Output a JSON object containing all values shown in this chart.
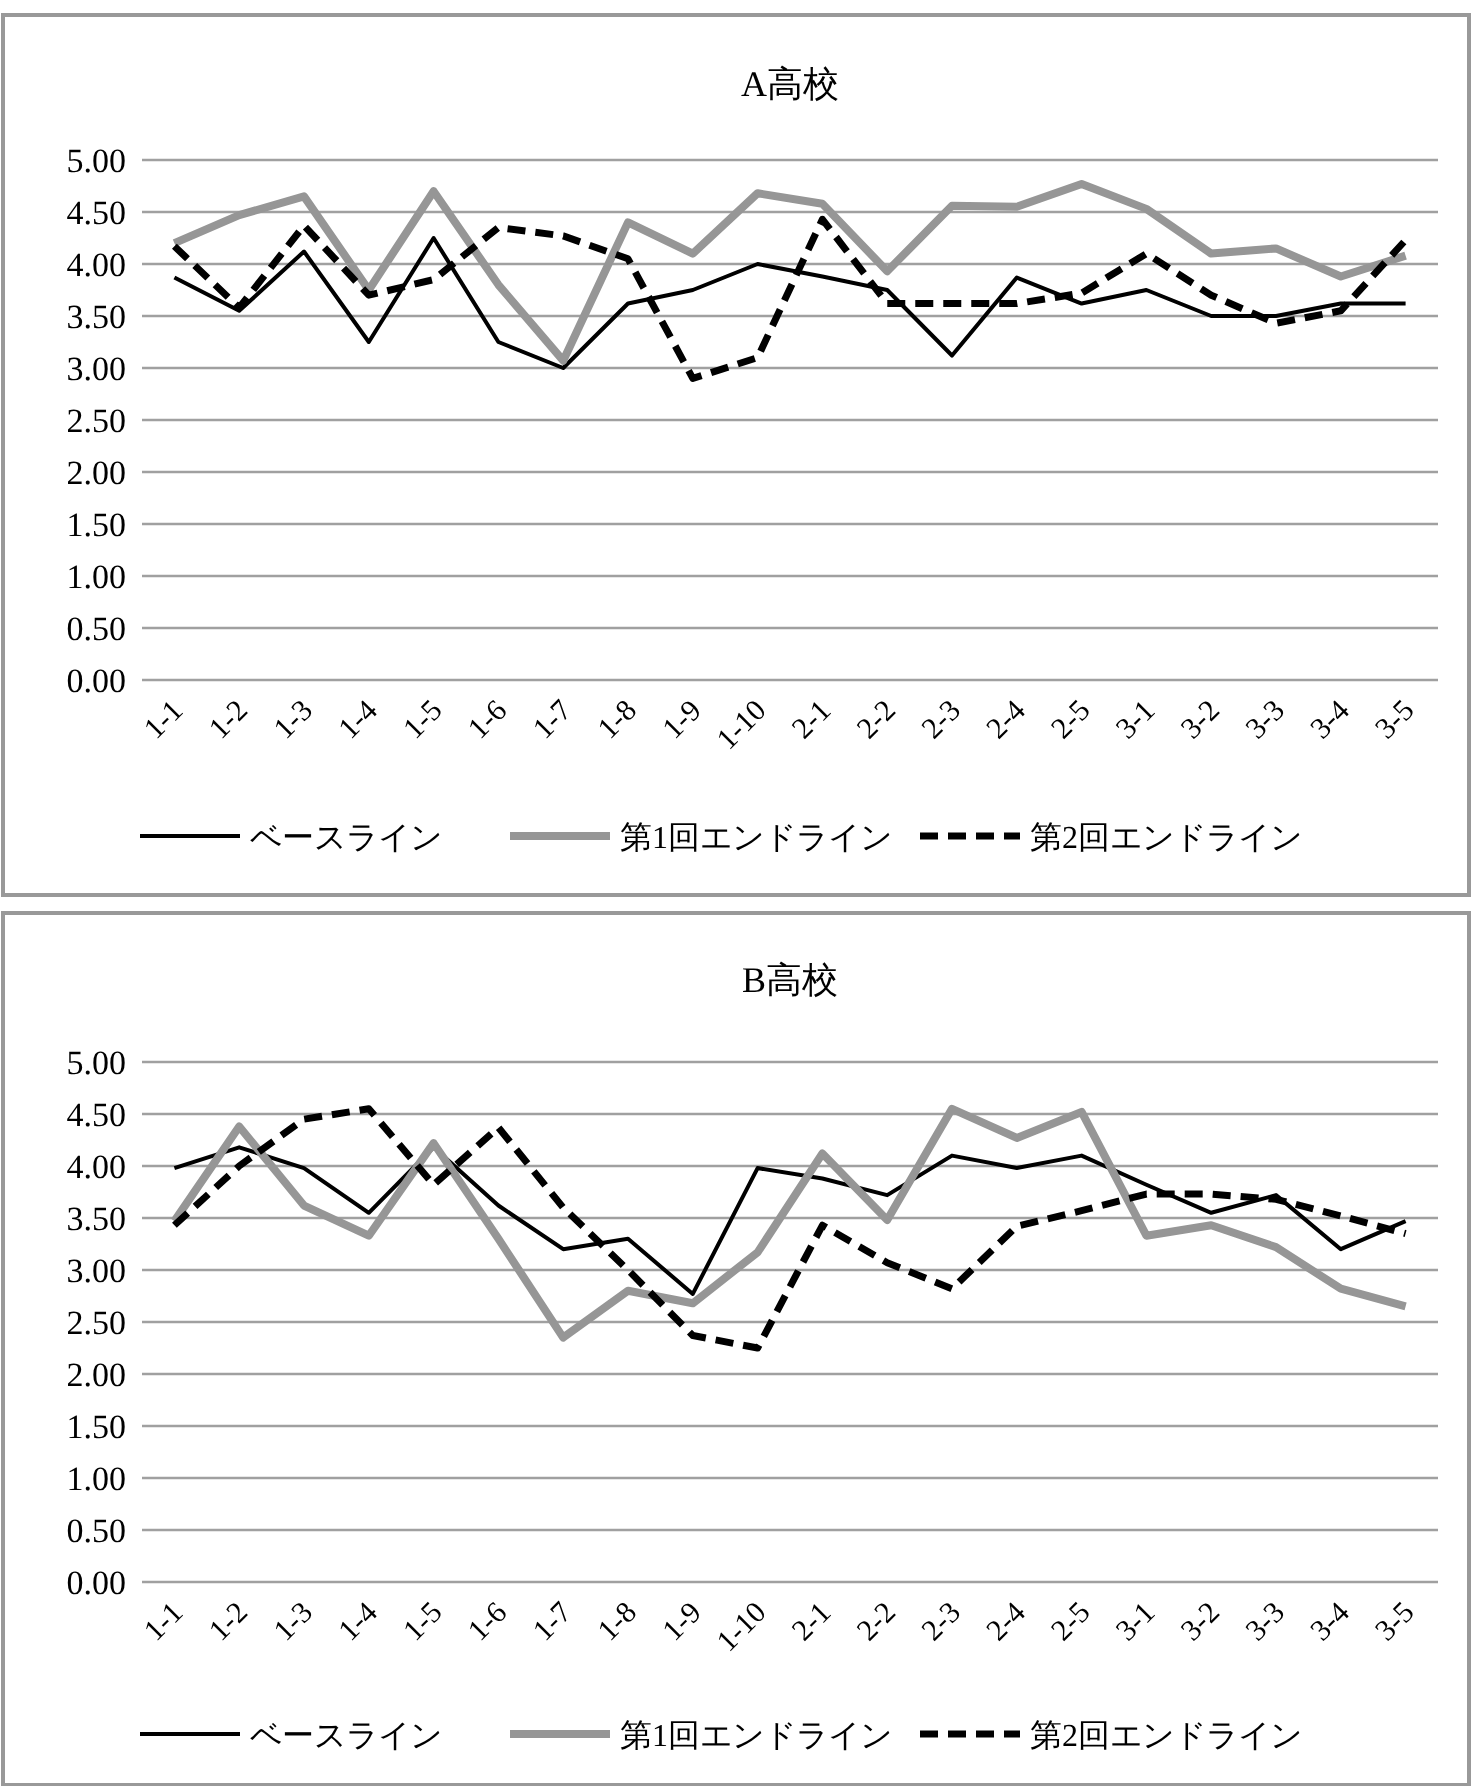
{
  "chart_data": [
    {
      "type": "line",
      "title": "A高校",
      "categories": [
        "1-1",
        "1-2",
        "1-3",
        "1-4",
        "1-5",
        "1-6",
        "1-7",
        "1-8",
        "1-9",
        "1-10",
        "2-1",
        "2-2",
        "2-3",
        "2-4",
        "2-5",
        "3-1",
        "3-2",
        "3-3",
        "3-4",
        "3-5"
      ],
      "series": [
        {
          "name": "ベースライン",
          "color": "#000000",
          "line_style": "solid",
          "values": [
            3.87,
            3.55,
            4.12,
            3.25,
            4.25,
            3.25,
            3.0,
            3.62,
            3.75,
            4.0,
            3.88,
            3.75,
            3.12,
            3.87,
            3.62,
            3.75,
            3.5,
            3.5,
            3.62,
            3.62
          ]
        },
        {
          "name": "第1回エンドライン",
          "color": "#969696",
          "line_style": "solid",
          "values": [
            4.2,
            4.47,
            4.65,
            3.75,
            4.7,
            3.8,
            3.07,
            4.4,
            4.1,
            4.68,
            4.58,
            3.93,
            4.56,
            4.55,
            4.77,
            4.53,
            4.1,
            4.15,
            3.88,
            4.08
          ]
        },
        {
          "name": "第2回エンドライン",
          "color": "#000000",
          "line_style": "dashed",
          "values": [
            4.17,
            3.58,
            4.37,
            3.7,
            3.85,
            4.35,
            4.27,
            4.05,
            2.9,
            3.1,
            4.43,
            3.62,
            3.62,
            3.62,
            3.72,
            4.1,
            3.7,
            3.43,
            3.55,
            4.23
          ]
        }
      ],
      "ylim": [
        0,
        5
      ],
      "yticks": [
        {
          "value": 0,
          "label": "0.00"
        },
        {
          "value": 0.5,
          "label": "0.50"
        },
        {
          "value": 1,
          "label": "1.00"
        },
        {
          "value": 1.5,
          "label": "1.50"
        },
        {
          "value": 2,
          "label": "2.00"
        },
        {
          "value": 2.5,
          "label": "2.50"
        },
        {
          "value": 3,
          "label": "3.00"
        },
        {
          "value": 3.5,
          "label": "3.50"
        },
        {
          "value": 4,
          "label": "4.00"
        },
        {
          "value": 4.5,
          "label": "4.50"
        },
        {
          "value": 5,
          "label": "5.00"
        }
      ],
      "grid": "y",
      "legend": "bottom"
    },
    {
      "type": "line",
      "title": "B高校",
      "categories": [
        "1-1",
        "1-2",
        "1-3",
        "1-4",
        "1-5",
        "1-6",
        "1-7",
        "1-8",
        "1-9",
        "1-10",
        "2-1",
        "2-2",
        "2-3",
        "2-4",
        "2-5",
        "3-1",
        "3-2",
        "3-3",
        "3-4",
        "3-5"
      ],
      "series": [
        {
          "name": "ベースライン",
          "color": "#000000",
          "line_style": "solid",
          "values": [
            3.98,
            4.18,
            3.98,
            3.55,
            4.18,
            3.62,
            3.2,
            3.3,
            2.77,
            3.98,
            3.88,
            3.72,
            4.1,
            3.98,
            4.1,
            3.82,
            3.55,
            3.72,
            3.2,
            3.47
          ]
        },
        {
          "name": "第1回エンドライン",
          "color": "#969696",
          "line_style": "solid",
          "values": [
            3.47,
            4.38,
            3.62,
            3.33,
            4.22,
            3.3,
            2.35,
            2.8,
            2.68,
            3.17,
            4.12,
            3.48,
            4.55,
            4.27,
            4.52,
            3.33,
            3.43,
            3.22,
            2.82,
            2.65
          ]
        },
        {
          "name": "第2回エンドライン",
          "color": "#000000",
          "line_style": "dashed",
          "values": [
            3.43,
            4.0,
            4.45,
            4.55,
            3.82,
            4.37,
            3.6,
            3.0,
            2.37,
            2.25,
            3.43,
            3.07,
            2.82,
            3.42,
            3.57,
            3.73,
            3.73,
            3.68,
            3.52,
            3.35
          ]
        }
      ],
      "ylim": [
        0,
        5
      ],
      "yticks": [
        {
          "value": 0,
          "label": "0.00"
        },
        {
          "value": 0.5,
          "label": "0.50"
        },
        {
          "value": 1,
          "label": "1.00"
        },
        {
          "value": 1.5,
          "label": "1.50"
        },
        {
          "value": 2,
          "label": "2.00"
        },
        {
          "value": 2.5,
          "label": "2.50"
        },
        {
          "value": 3,
          "label": "3.00"
        },
        {
          "value": 3.5,
          "label": "3.50"
        },
        {
          "value": 4,
          "label": "4.00"
        },
        {
          "value": 4.5,
          "label": "4.50"
        },
        {
          "value": 5,
          "label": "5.00"
        }
      ],
      "grid": "y",
      "legend": "bottom"
    }
  ]
}
